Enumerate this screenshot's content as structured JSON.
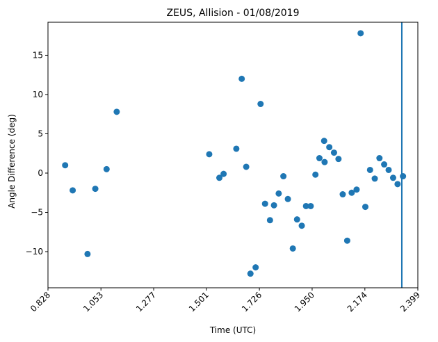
{
  "chart_data": {
    "type": "scatter",
    "title": "ZEUS, Allision - 01/08/2019",
    "xlabel": "Time (UTC)",
    "ylabel": "Angle Difference (deg)",
    "xlim": [
      0.828,
      2.399
    ],
    "ylim": [
      -14.6,
      19.2
    ],
    "x_ticks": [
      0.828,
      1.053,
      1.277,
      1.501,
      1.726,
      1.95,
      2.174,
      2.399
    ],
    "x_tick_labels": [
      "0.828",
      "1.053",
      "1.277",
      "1.501",
      "1.726",
      "1.950",
      "2.174",
      "2.399"
    ],
    "y_ticks": [
      -10,
      -5,
      0,
      5,
      10,
      15
    ],
    "y_tick_labels": [
      "−10",
      "−5",
      "0",
      "5",
      "10",
      "15"
    ],
    "grid": false,
    "legend": "none",
    "marker_color": "#1f77b4",
    "vline": {
      "x": 2.331,
      "color": "#1f77b4"
    },
    "series": [
      {
        "points": [
          [
            0.901,
            1.0
          ],
          [
            0.933,
            -2.2
          ],
          [
            0.996,
            -10.3
          ],
          [
            1.029,
            -2.0
          ],
          [
            1.077,
            0.5
          ],
          [
            1.12,
            7.8
          ],
          [
            1.513,
            2.4
          ],
          [
            1.556,
            -0.6
          ],
          [
            1.574,
            -0.1
          ],
          [
            1.628,
            3.1
          ],
          [
            1.651,
            12.0
          ],
          [
            1.67,
            0.8
          ],
          [
            1.688,
            -12.8
          ],
          [
            1.71,
            -12.0
          ],
          [
            1.731,
            8.8
          ],
          [
            1.75,
            -3.9
          ],
          [
            1.771,
            -6.0
          ],
          [
            1.788,
            -4.1
          ],
          [
            1.808,
            -2.6
          ],
          [
            1.828,
            -0.4
          ],
          [
            1.847,
            -3.3
          ],
          [
            1.868,
            -9.6
          ],
          [
            1.886,
            -5.9
          ],
          [
            1.906,
            -6.7
          ],
          [
            1.924,
            -4.2
          ],
          [
            1.944,
            -4.2
          ],
          [
            1.964,
            -0.2
          ],
          [
            1.981,
            1.9
          ],
          [
            2.001,
            4.1
          ],
          [
            2.003,
            1.4
          ],
          [
            2.023,
            3.3
          ],
          [
            2.043,
            2.6
          ],
          [
            2.062,
            1.8
          ],
          [
            2.08,
            -2.7
          ],
          [
            2.099,
            -8.6
          ],
          [
            2.118,
            -2.5
          ],
          [
            2.139,
            -2.1
          ],
          [
            2.156,
            17.8
          ],
          [
            2.176,
            -4.3
          ],
          [
            2.196,
            0.4
          ],
          [
            2.216,
            -0.7
          ],
          [
            2.236,
            1.9
          ],
          [
            2.256,
            1.1
          ],
          [
            2.275,
            0.4
          ],
          [
            2.294,
            -0.6
          ],
          [
            2.313,
            -1.4
          ],
          [
            2.336,
            -0.4
          ]
        ]
      }
    ]
  }
}
